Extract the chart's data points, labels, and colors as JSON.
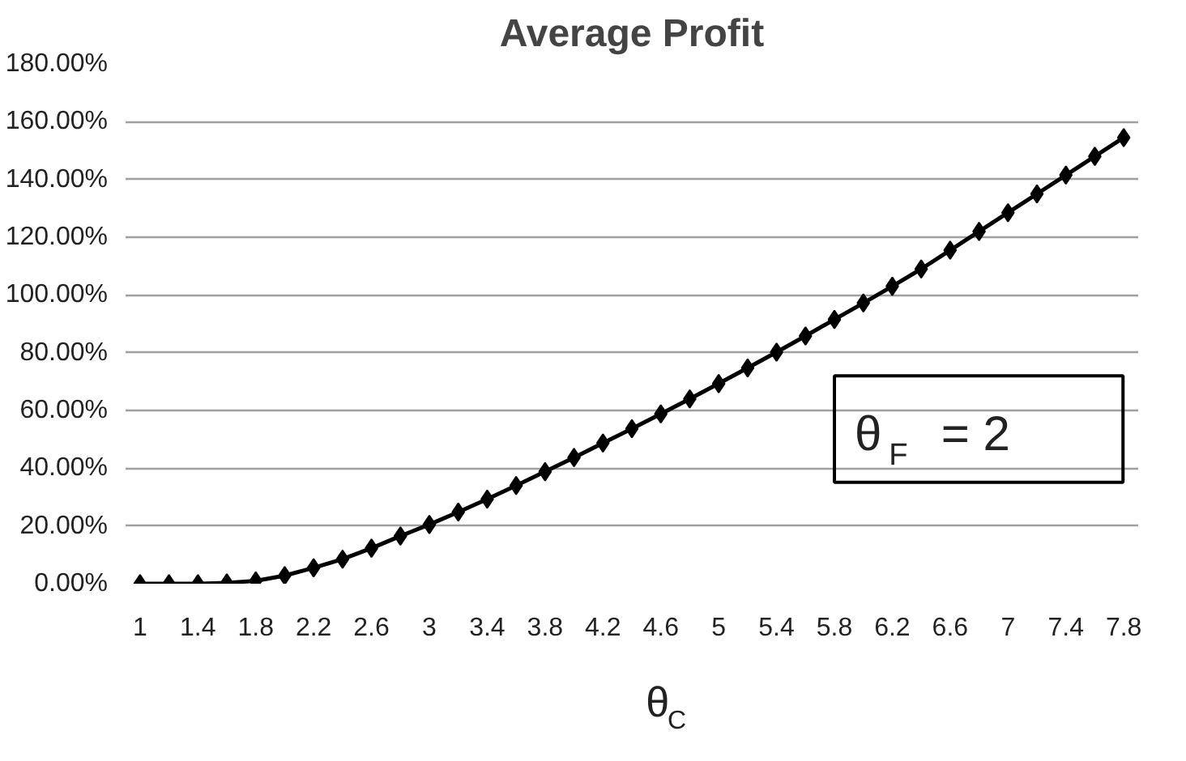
{
  "chart_data": {
    "type": "line",
    "title": "Average Profit",
    "xlabel": "θ$_{C}$",
    "x": [
      1,
      1.2,
      1.4,
      1.6,
      1.8,
      2,
      2.2,
      2.4,
      2.6,
      2.8,
      3,
      3.2,
      3.4,
      3.6,
      3.8,
      4,
      4.2,
      4.4,
      4.6,
      4.8,
      5,
      5.2,
      5.4,
      5.6,
      5.8,
      6,
      6.2,
      6.4,
      6.6,
      6.8,
      7,
      7.2,
      7.4,
      7.6,
      7.8
    ],
    "series": [
      {
        "color": "#000000",
        "values": [
          0,
          0,
          0,
          0.3,
          1,
          2.8,
          5.5,
          8.5,
          12.3,
          16.5,
          20.5,
          24.8,
          29.3,
          34,
          38.8,
          43.7,
          48.7,
          53.7,
          58.8,
          64,
          69.3,
          74.7,
          80.2,
          85.8,
          91.5,
          97.2,
          103,
          109,
          115.5,
          122,
          128.5,
          135,
          141.5,
          148,
          154.5
        ]
      }
    ],
    "xlim": [
      0.9,
      7.9
    ],
    "xticks": [
      1,
      1.4,
      1.8,
      2.2,
      2.6,
      3,
      3.4,
      3.8,
      4.2,
      4.6,
      5,
      5.4,
      5.8,
      6.2,
      6.6,
      7,
      7.4,
      7.8
    ],
    "ylim": [
      0,
      180
    ],
    "yticks": [
      {
        "value": 0,
        "label": "0.00%"
      },
      {
        "value": 20,
        "label": "20.00%"
      },
      {
        "value": 40,
        "label": "40.00%"
      },
      {
        "value": 60,
        "label": "60.00%"
      },
      {
        "value": 80,
        "label": "80.00%"
      },
      {
        "value": 100,
        "label": "100.00%"
      },
      {
        "value": 120,
        "label": "120.00%"
      },
      {
        "value": 140,
        "label": "140.00%"
      },
      {
        "value": 160,
        "label": "160.00%"
      },
      {
        "value": 180,
        "label": "180.00%"
      }
    ],
    "annotations": [
      "θ$_{F}$ = 2"
    ],
    "grid": "y",
    "marker": "diamond",
    "line_style": "solid"
  }
}
